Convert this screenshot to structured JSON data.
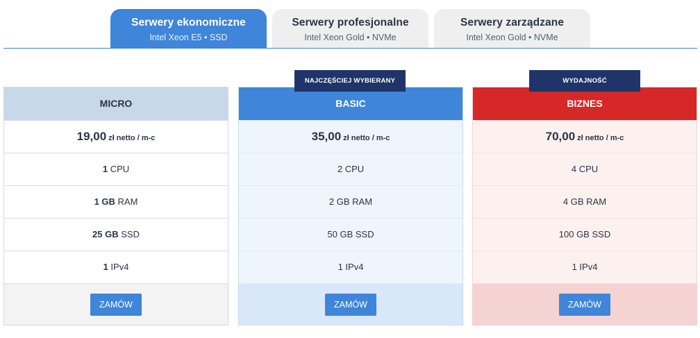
{
  "tabs": [
    {
      "title": "Serwery ekonomiczne",
      "subtitle": "Intel Xeon E5 • SSD",
      "active": true
    },
    {
      "title": "Serwery profesjonalne",
      "subtitle": "Intel Xeon Gold • NVMe",
      "active": false
    },
    {
      "title": "Serwery zarządzane",
      "subtitle": "Intel Xeon Gold • NVMe",
      "active": false
    }
  ],
  "plans": [
    {
      "name": "MICRO",
      "badge": "",
      "price": "19,00",
      "price_unit": "zł netto / m-c",
      "cpu": {
        "value": "1",
        "unit": "CPU"
      },
      "ram": {
        "value": "1 GB",
        "unit": "RAM"
      },
      "disk": {
        "value": "25 GB",
        "unit": "SSD"
      },
      "ip": {
        "value": "1",
        "unit": "IPv4"
      },
      "button": "ZAMÓW"
    },
    {
      "name": "BASIC",
      "badge": "NAJCZĘŚCIEJ WYBIERANY",
      "price": "35,00",
      "price_unit": "zł netto / m-c",
      "cpu": {
        "value": "2",
        "unit": "CPU"
      },
      "ram": {
        "value": "2 GB",
        "unit": "RAM"
      },
      "disk": {
        "value": "50 GB",
        "unit": "SSD"
      },
      "ip": {
        "value": "1",
        "unit": "IPv4"
      },
      "button": "ZAMÓW"
    },
    {
      "name": "BIZNES",
      "badge": "WYDAJNOŚĆ",
      "price": "70,00",
      "price_unit": "zł netto / m-c",
      "cpu": {
        "value": "4",
        "unit": "CPU"
      },
      "ram": {
        "value": "4 GB",
        "unit": "RAM"
      },
      "disk": {
        "value": "100 GB",
        "unit": "SSD"
      },
      "ip": {
        "value": "1",
        "unit": "IPv4"
      },
      "button": "ZAMÓW"
    }
  ],
  "colors": {
    "accent_blue": "#3f85d9",
    "accent_red": "#d72828",
    "badge_navy": "#1f3468",
    "micro_header": "#c8d8e9"
  }
}
